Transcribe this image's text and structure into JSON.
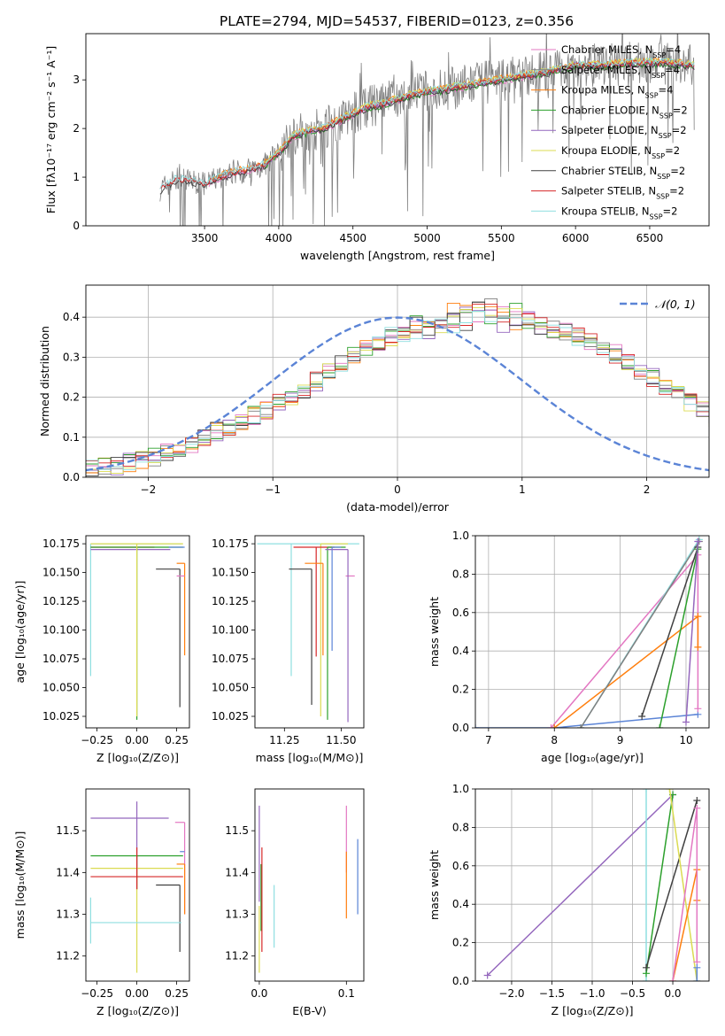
{
  "figure_title": "PLATE=2794, MJD=54537, FIBERID=0123, z=0.356",
  "chart_data": [
    {
      "id": "spectrum",
      "type": "line",
      "xlabel": "wavelength [Angstrom, rest frame]",
      "ylabel": "Flux [fλ10⁻¹⁷ erg cm⁻² s⁻¹ A⁻¹]",
      "xlim": [
        2700,
        6900
      ],
      "ylim": [
        0,
        3.95
      ],
      "xticks": [
        "3500",
        "4000",
        "4500",
        "5000",
        "5500",
        "6000",
        "6500"
      ],
      "yticks": [
        "0",
        "1",
        "2",
        "3"
      ],
      "grid": false,
      "legend_position": "top-right",
      "series": [
        {
          "name": "Chabrier MILES, N_SSP=4",
          "color": "#e377c2",
          "start": 3530,
          "end": 6800
        },
        {
          "name": "Salpeter MILES, N_SSP=4",
          "color": "#7f7f7f",
          "start": 3530,
          "end": 6800
        },
        {
          "name": "Kroupa MILES, N_SSP=4",
          "color": "#ff7f0e",
          "start": 3530,
          "end": 6800
        },
        {
          "name": "Chabrier ELODIE, N_SSP=2",
          "color": "#2ca02c",
          "start": 3900,
          "end": 6800
        },
        {
          "name": "Salpeter ELODIE, N_SSP=2",
          "color": "#9467bd",
          "start": 3900,
          "end": 6800
        },
        {
          "name": "Kroupa ELODIE, N_SSP=2",
          "color": "#dbdb52",
          "start": 3900,
          "end": 6800
        },
        {
          "name": "Chabrier STELIB, N_SSP=2",
          "color": "#404040",
          "start": 3200,
          "end": 6800
        },
        {
          "name": "Salpeter STELIB, N_SSP=2",
          "color": "#d62728",
          "start": 3200,
          "end": 6800
        },
        {
          "name": "Kroupa STELIB, N_SSP=2",
          "color": "#8fdfe0",
          "start": 3200,
          "end": 6800
        }
      ],
      "data_curve": {
        "color": "#808080",
        "start": 3200,
        "end": 6800,
        "trend": [
          [
            3200,
            0.75
          ],
          [
            3300,
            0.95
          ],
          [
            3400,
            0.93
          ],
          [
            3500,
            0.85
          ],
          [
            3600,
            1.0
          ],
          [
            3700,
            1.1
          ],
          [
            3800,
            1.15
          ],
          [
            3900,
            1.25
          ],
          [
            4000,
            1.5
          ],
          [
            4100,
            1.85
          ],
          [
            4200,
            1.95
          ],
          [
            4300,
            2.0
          ],
          [
            4400,
            2.15
          ],
          [
            4500,
            2.3
          ],
          [
            4600,
            2.45
          ],
          [
            4700,
            2.5
          ],
          [
            4800,
            2.6
          ],
          [
            4900,
            2.7
          ],
          [
            5000,
            2.75
          ],
          [
            5200,
            2.85
          ],
          [
            5400,
            2.95
          ],
          [
            5600,
            3.05
          ],
          [
            5800,
            3.15
          ],
          [
            6000,
            3.3
          ],
          [
            6200,
            3.3
          ],
          [
            6400,
            3.35
          ],
          [
            6600,
            3.35
          ],
          [
            6800,
            3.3
          ]
        ]
      }
    },
    {
      "id": "residuals",
      "type": "histogram",
      "xlabel": "(data-model)/error",
      "ylabel": "Normed distribution",
      "xlim": [
        -2.5,
        2.5
      ],
      "ylim": [
        0,
        0.48
      ],
      "xticks": [
        "−2",
        "−1",
        "0",
        "1",
        "2"
      ],
      "yticks": [
        "0.0",
        "0.1",
        "0.2",
        "0.3",
        "0.4"
      ],
      "grid": true,
      "legend_position": "top-right",
      "gaussian_label": "𝒩(0, 1)",
      "gaussian_color": "#5b84d6",
      "bin_edges_start": -2.5,
      "bin_width": 0.1,
      "base_values": [
        0.025,
        0.028,
        0.031,
        0.035,
        0.04,
        0.05,
        0.06,
        0.07,
        0.085,
        0.1,
        0.115,
        0.125,
        0.14,
        0.155,
        0.17,
        0.19,
        0.205,
        0.22,
        0.24,
        0.26,
        0.28,
        0.3,
        0.32,
        0.34,
        0.35,
        0.36,
        0.37,
        0.38,
        0.39,
        0.4,
        0.41,
        0.41,
        0.41,
        0.4,
        0.4,
        0.39,
        0.38,
        0.37,
        0.36,
        0.35,
        0.34,
        0.33,
        0.31,
        0.29,
        0.27,
        0.25,
        0.23,
        0.21,
        0.19,
        0.17,
        0.15,
        0.13,
        0.11,
        0.095,
        0.08,
        0.07,
        0.06,
        0.05,
        0.045,
        0.04
      ]
    },
    {
      "id": "age-vs-Z",
      "type": "errorbar",
      "xlabel": "Z [log₁₀(Z/Z⊙)]",
      "ylabel": "age  [log₁₀(age/yr)]",
      "xlim": [
        -0.32,
        0.33
      ],
      "ylim": [
        10.015,
        10.182
      ],
      "xticks": [
        "−0.25",
        "0.00",
        "0.25"
      ],
      "yticks": [
        "10.025",
        "10.050",
        "10.075",
        "10.100",
        "10.125",
        "10.150",
        "10.175"
      ],
      "grid": false,
      "points": [
        {
          "color": "#8fdfe0",
          "x": -0.29,
          "y": 10.175,
          "xerr": [
            0.0,
            0.57
          ],
          "yerr": [
            0.115,
            0.0
          ]
        },
        {
          "color": "#9467bd",
          "x": -0.29,
          "y": 10.17,
          "xerr": [
            0.0,
            0.5
          ],
          "yerr": [
            0.0,
            0.0
          ]
        },
        {
          "color": "#d62728",
          "x": -0.29,
          "y": 10.172,
          "xerr": [
            0.0,
            0.4
          ],
          "yerr": [
            0.0,
            0.0
          ]
        },
        {
          "color": "#2ca02c",
          "x": 0.0,
          "y": 10.172,
          "xerr": [
            0.29,
            0.29
          ],
          "yerr": [
            0.15,
            0.0
          ]
        },
        {
          "color": "#dbdb52",
          "x": 0.0,
          "y": 10.175,
          "xerr": [
            0.29,
            0.29
          ],
          "yerr": [
            0.15,
            0.0
          ]
        },
        {
          "color": "#404040",
          "x": 0.27,
          "y": 10.153,
          "xerr": [
            0.15,
            0.0
          ],
          "yerr": [
            0.12,
            0.0
          ]
        },
        {
          "color": "#ff7f0e",
          "x": 0.3,
          "y": 10.158,
          "xerr": [
            0.05,
            0.0
          ],
          "yerr": [
            0.08,
            0.0
          ]
        },
        {
          "color": "#e377c2",
          "x": 0.3,
          "y": 10.147,
          "xerr": [
            0.05,
            0.0
          ],
          "yerr": [
            0.0,
            0.0
          ]
        },
        {
          "color": "#5b84d6",
          "x": 0.3,
          "y": 10.172,
          "xerr": [
            0.1,
            0.0
          ],
          "yerr": [
            0.0,
            0.0
          ]
        }
      ]
    },
    {
      "id": "age-vs-mass",
      "type": "errorbar",
      "xlabel": "mass [log₁₀(M/M⊙)]",
      "ylabel": "",
      "xlim": [
        11.12,
        11.6
      ],
      "ylim": [
        10.015,
        10.182
      ],
      "xticks": [
        "11.25",
        "11.50"
      ],
      "yticks": [
        "10.025",
        "10.050",
        "10.075",
        "10.100",
        "10.125",
        "10.150",
        "10.175"
      ],
      "grid": false,
      "points": [
        {
          "color": "#8fdfe0",
          "x": 11.28,
          "y": 10.175,
          "xerr": [
            0.15,
            0.3
          ],
          "yerr": [
            0.115,
            0.0
          ]
        },
        {
          "color": "#404040",
          "x": 11.37,
          "y": 10.153,
          "xerr": [
            0.1,
            0.0
          ],
          "yerr": [
            0.118,
            0.0
          ]
        },
        {
          "color": "#dbdb52",
          "x": 11.41,
          "y": 10.175,
          "xerr": [
            0.0,
            0.12
          ],
          "yerr": [
            0.15,
            0.0
          ]
        },
        {
          "color": "#d62728",
          "x": 11.39,
          "y": 10.172,
          "xerr": [
            0.1,
            0.08
          ],
          "yerr": [
            0.095,
            0.0
          ]
        },
        {
          "color": "#2ca02c",
          "x": 11.44,
          "y": 10.172,
          "xerr": [
            0.0,
            0.08
          ],
          "yerr": [
            0.15,
            0.0
          ]
        },
        {
          "color": "#ff7f0e",
          "x": 11.42,
          "y": 10.158,
          "xerr": [
            0.08,
            0.0
          ],
          "yerr": [
            0.08,
            0.0
          ]
        },
        {
          "color": "#e377c2",
          "x": 11.52,
          "y": 10.147,
          "xerr": [
            0.0,
            0.04
          ],
          "yerr": [
            0.0,
            0.0
          ]
        },
        {
          "color": "#5b84d6",
          "x": 11.46,
          "y": 10.172,
          "xerr": [
            0.0,
            0.04
          ],
          "yerr": [
            0.09,
            0.0
          ]
        },
        {
          "color": "#9467bd",
          "x": 11.53,
          "y": 10.17,
          "xerr": [
            0.1,
            0.0
          ],
          "yerr": [
            0.15,
            0.0
          ]
        }
      ]
    },
    {
      "id": "massweight-vs-age",
      "type": "line",
      "xlabel": "age  [log₁₀(age/yr)]",
      "ylabel": "mass weight",
      "xlim": [
        6.8,
        10.35
      ],
      "ylim": [
        0,
        1.0
      ],
      "xticks": [
        "7",
        "8",
        "9",
        "10"
      ],
      "yticks": [
        "0.0",
        "0.2",
        "0.4",
        "0.6",
        "0.8",
        "1.0"
      ],
      "grid": true,
      "series": [
        {
          "color": "#5b84d6",
          "points": [
            [
              6.8,
              0.0
            ],
            [
              8.0,
              0.0
            ],
            [
              10.18,
              0.07
            ]
          ]
        },
        {
          "color": "#e377c2",
          "points": [
            [
              7.95,
              0.0
            ],
            [
              10.18,
              0.9
            ],
            [
              10.18,
              0.1
            ]
          ]
        },
        {
          "color": "#ff7f0e",
          "points": [
            [
              8.0,
              0.0
            ],
            [
              10.18,
              0.58
            ],
            [
              10.18,
              0.42
            ]
          ]
        },
        {
          "color": "#8fdfe0",
          "points": [
            [
              8.4,
              0.0
            ],
            [
              10.2,
              0.98
            ]
          ]
        },
        {
          "color": "#7f7f7f",
          "points": [
            [
              8.4,
              0.0
            ],
            [
              10.2,
              0.97
            ]
          ]
        },
        {
          "color": "#404040",
          "points": [
            [
              9.33,
              0.06
            ],
            [
              10.18,
              0.94
            ]
          ]
        },
        {
          "color": "#2ca02c",
          "points": [
            [
              9.6,
              0.0
            ],
            [
              10.18,
              0.93
            ]
          ]
        },
        {
          "color": "#9467bd",
          "points": [
            [
              10.0,
              0.03
            ],
            [
              10.18,
              0.97
            ]
          ]
        }
      ]
    },
    {
      "id": "mass-vs-Z",
      "type": "errorbar",
      "xlabel": "Z [log₁₀(Z/Z⊙)]",
      "ylabel": "mass [log₁₀(M/M⊙)]",
      "xlim": [
        -0.32,
        0.33
      ],
      "ylim": [
        11.14,
        11.6
      ],
      "xticks": [
        "−0.25",
        "0.00",
        "0.25"
      ],
      "yticks": [
        "11.2",
        "11.3",
        "11.4",
        "11.5"
      ],
      "grid": false,
      "points": [
        {
          "color": "#9467bd",
          "x": 0.0,
          "y": 11.53,
          "xerr": [
            0.29,
            0.2
          ],
          "yerr": [
            0.17,
            0.04
          ]
        },
        {
          "color": "#2ca02c",
          "x": 0.0,
          "y": 11.44,
          "xerr": [
            0.29,
            0.29
          ],
          "yerr": [
            0.08,
            0.0
          ]
        },
        {
          "color": "#dbdb52",
          "x": 0.0,
          "y": 11.41,
          "xerr": [
            0.29,
            0.29
          ],
          "yerr": [
            0.25,
            0.0
          ]
        },
        {
          "color": "#d62728",
          "x": 0.0,
          "y": 11.39,
          "xerr": [
            0.29,
            0.29
          ],
          "yerr": [
            0.03,
            0.07
          ]
        },
        {
          "color": "#404040",
          "x": 0.27,
          "y": 11.37,
          "xerr": [
            0.15,
            0.0
          ],
          "yerr": [
            0.16,
            0.0
          ]
        },
        {
          "color": "#8fdfe0",
          "x": -0.29,
          "y": 11.28,
          "xerr": [
            0.0,
            0.57
          ],
          "yerr": [
            0.05,
            0.06
          ]
        },
        {
          "color": "#e377c2",
          "x": 0.3,
          "y": 11.52,
          "xerr": [
            0.06,
            0.0
          ],
          "yerr": [
            0.22,
            0.0
          ]
        },
        {
          "color": "#ff7f0e",
          "x": 0.3,
          "y": 11.42,
          "xerr": [
            0.05,
            0.0
          ],
          "yerr": [
            0.12,
            0.0
          ]
        },
        {
          "color": "#5b84d6",
          "x": 0.3,
          "y": 11.45,
          "xerr": [
            0.03,
            0.0
          ],
          "yerr": [
            0.0,
            0.0
          ]
        }
      ]
    },
    {
      "id": "mass-vs-EBV",
      "type": "errorbar",
      "xlabel": "E(B-V)",
      "ylabel": "",
      "xlim": [
        -0.005,
        0.12
      ],
      "ylim": [
        11.14,
        11.6
      ],
      "xticks": [
        "0.0",
        "0.1"
      ],
      "yticks": [
        "11.2",
        "11.3",
        "11.4",
        "11.5"
      ],
      "grid": false,
      "points": [
        {
          "color": "#9467bd",
          "x": 0.0,
          "y": 11.43,
          "xerr": [
            0,
            0
          ],
          "yerr": [
            0.1,
            0.13
          ]
        },
        {
          "color": "#dbdb52",
          "x": 0.0,
          "y": 11.26,
          "xerr": [
            0,
            0
          ],
          "yerr": [
            0.1,
            0.06
          ]
        },
        {
          "color": "#2ca02c",
          "x": 0.002,
          "y": 11.36,
          "xerr": [
            0,
            0
          ],
          "yerr": [
            0.1,
            0.06
          ]
        },
        {
          "color": "#d62728",
          "x": 0.003,
          "y": 11.35,
          "xerr": [
            0,
            0
          ],
          "yerr": [
            0.14,
            0.11
          ]
        },
        {
          "color": "#8fdfe0",
          "x": 0.017,
          "y": 11.3,
          "xerr": [
            0,
            0
          ],
          "yerr": [
            0.08,
            0.07
          ]
        },
        {
          "color": "#e377c2",
          "x": 0.1,
          "y": 11.48,
          "xerr": [
            0,
            0
          ],
          "yerr": [
            0.08,
            0.08
          ]
        },
        {
          "color": "#ff7f0e",
          "x": 0.1,
          "y": 11.38,
          "xerr": [
            0,
            0
          ],
          "yerr": [
            0.09,
            0.07
          ]
        },
        {
          "color": "#5b84d6",
          "x": 0.113,
          "y": 11.38,
          "xerr": [
            0,
            0
          ],
          "yerr": [
            0.08,
            0.1
          ]
        }
      ]
    },
    {
      "id": "massweight-vs-Z",
      "type": "line",
      "xlabel": "Z [log₁₀(Z/Z⊙)]",
      "ylabel": "mass weight",
      "xlim": [
        -2.45,
        0.45
      ],
      "ylim": [
        0,
        1.0
      ],
      "xticks": [
        "−2.0",
        "−1.5",
        "−1.0",
        "−0.5",
        "0.0"
      ],
      "yticks": [
        "0.0",
        "0.2",
        "0.4",
        "0.6",
        "0.8",
        "1.0"
      ],
      "grid": true,
      "series": [
        {
          "color": "#9467bd",
          "points": [
            [
              -2.3,
              0.03
            ],
            [
              0.0,
              0.97
            ]
          ]
        },
        {
          "color": "#8fdfe0",
          "points": [
            [
              -0.33,
              0.0
            ],
            [
              -0.33,
              1.0
            ]
          ]
        },
        {
          "color": "#2ca02c",
          "points": [
            [
              -0.33,
              0.04
            ],
            [
              0.0,
              0.97
            ]
          ]
        },
        {
          "color": "#404040",
          "points": [
            [
              -0.33,
              0.07
            ],
            [
              0.3,
              0.94
            ]
          ]
        },
        {
          "color": "#dbdb52",
          "points": [
            [
              -0.04,
              1.0
            ],
            [
              0.3,
              0.0
            ]
          ]
        },
        {
          "color": "#ff7f0e",
          "points": [
            [
              0.0,
              0.0
            ],
            [
              0.3,
              0.58
            ],
            [
              0.3,
              0.42
            ]
          ]
        },
        {
          "color": "#e377c2",
          "points": [
            [
              0.0,
              0.0
            ],
            [
              0.3,
              0.9
            ],
            [
              0.3,
              0.1
            ]
          ]
        },
        {
          "color": "#5b84d6",
          "points": [
            [
              0.3,
              0.0
            ],
            [
              0.3,
              0.07
            ]
          ]
        }
      ]
    }
  ]
}
